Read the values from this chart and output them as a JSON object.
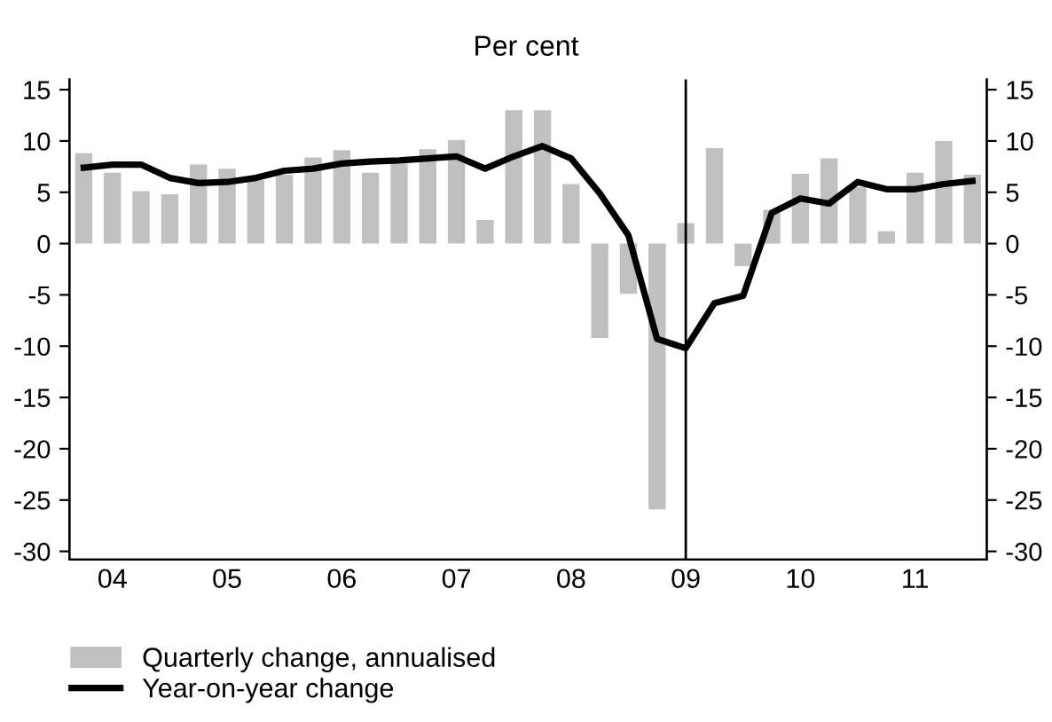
{
  "chart_data": {
    "type": "bar",
    "subtitle": "Per cent",
    "categories": [
      null,
      "04",
      null,
      null,
      null,
      "05",
      null,
      null,
      null,
      "06",
      null,
      null,
      null,
      "07",
      null,
      null,
      null,
      "08",
      null,
      null,
      null,
      "09",
      null,
      null,
      null,
      "10",
      null,
      null,
      null,
      "11",
      null,
      null
    ],
    "series": [
      {
        "name": "Quarterly change, annualised",
        "color": "#c0c0c0",
        "values": [
          8.8,
          6.9,
          5.1,
          4.8,
          7.7,
          7.3,
          6.2,
          6.7,
          8.4,
          9.1,
          6.9,
          7.8,
          9.2,
          10.1,
          2.3,
          13.0,
          13.0,
          5.8,
          -9.2,
          -4.9,
          -25.9,
          2.0,
          9.3,
          -2.2,
          3.3,
          6.8,
          8.3,
          5.5,
          1.2,
          6.9,
          10.0,
          6.7
        ]
      },
      {
        "name": "Year-on-year change",
        "type": "line",
        "color": "#000000",
        "values": [
          7.4,
          7.7,
          7.7,
          6.4,
          5.9,
          6.0,
          6.4,
          7.1,
          7.3,
          7.8,
          8.0,
          8.1,
          8.3,
          8.5,
          7.3,
          8.5,
          9.5,
          8.3,
          4.9,
          0.8,
          -9.3,
          -10.2,
          -5.8,
          -5.1,
          3.0,
          4.4,
          3.9,
          6.0,
          5.3,
          5.3,
          5.8,
          6.1
        ]
      }
    ],
    "ylim": [
      -30.8,
      16
    ],
    "yticks": [
      15,
      10,
      5,
      0,
      -5,
      -10,
      -15,
      -20,
      -25,
      -30
    ],
    "y2lim": [
      -30.8,
      16
    ],
    "y2ticks": [
      15,
      10,
      5,
      0,
      -5,
      -10,
      -15,
      -20,
      -25,
      -30
    ],
    "ref_lines": [
      {
        "axis": "x",
        "value": "09",
        "color": "#000000",
        "line_style": "solid"
      }
    ],
    "legend": "bottom",
    "grid": false,
    "marker": "none",
    "line_style": "solid"
  }
}
